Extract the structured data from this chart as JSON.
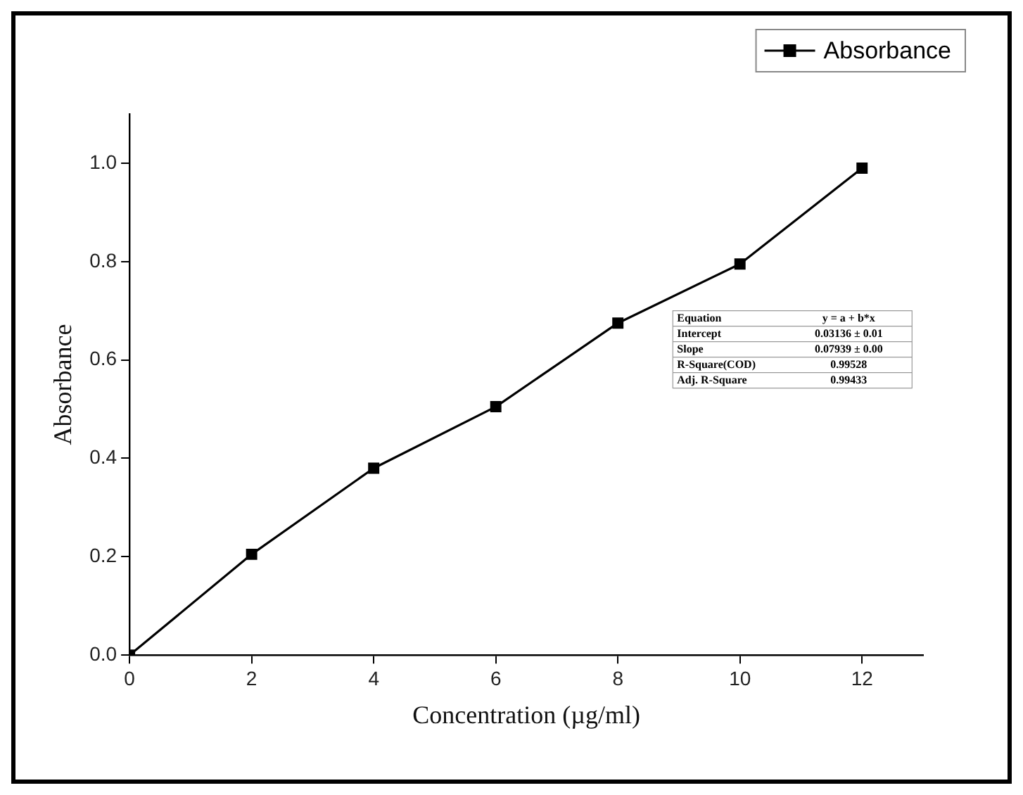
{
  "chart_data": {
    "type": "line",
    "xlabel": "Concentration (µg/ml)",
    "ylabel": "Absorbance",
    "x": [
      0,
      2,
      4,
      6,
      8,
      10,
      12
    ],
    "series": [
      {
        "name": "Absorbance",
        "color": "#000000",
        "values": [
          0,
          0.205,
          0.38,
          0.505,
          0.675,
          0.795,
          0.99
        ]
      }
    ],
    "xlim": [
      0,
      13
    ],
    "xticks": [
      0,
      2,
      4,
      6,
      8,
      10,
      12
    ],
    "ylim": [
      0,
      1.1
    ],
    "yticks": [
      {
        "value": 0,
        "label": "0.0"
      },
      0.2,
      0.4,
      0.6,
      0.8,
      {
        "value": 1,
        "label": "1.0"
      }
    ],
    "marker": "square",
    "line_style": "solid",
    "grid": false,
    "legend": "top right",
    "annotations": [
      "Equation",
      "y = a + b*x",
      "Intercept",
      "0.03136 ± 0.01",
      "Slope",
      "0.07939 ± 0.00",
      "R-Square(COD)",
      "0.99528",
      "Adj. R-Square",
      "0.99433"
    ]
  }
}
